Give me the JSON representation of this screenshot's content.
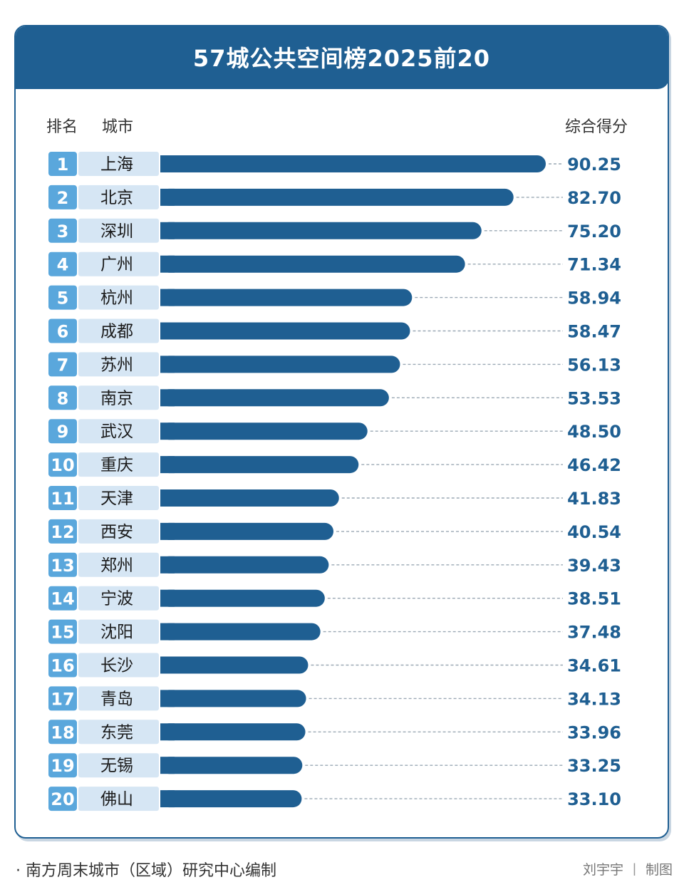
{
  "chart_data": {
    "type": "bar",
    "title": "57城公共空间榜2025前20",
    "headers": {
      "rank": "排名",
      "city": "城市",
      "score": "综合得分"
    },
    "ranks": [
      "1",
      "2",
      "3",
      "4",
      "5",
      "6",
      "7",
      "8",
      "9",
      "10",
      "11",
      "12",
      "13",
      "14",
      "15",
      "16",
      "17",
      "18",
      "19",
      "20"
    ],
    "categories": [
      "上海",
      "北京",
      "深圳",
      "广州",
      "杭州",
      "成都",
      "苏州",
      "南京",
      "武汉",
      "重庆",
      "天津",
      "西安",
      "郑州",
      "宁波",
      "沈阳",
      "长沙",
      "青岛",
      "东莞",
      "无锡",
      "佛山"
    ],
    "values": [
      90.25,
      82.7,
      75.2,
      71.34,
      58.94,
      58.47,
      56.13,
      53.53,
      48.5,
      46.42,
      41.83,
      40.54,
      39.43,
      38.51,
      37.48,
      34.61,
      34.13,
      33.96,
      33.25,
      33.1
    ],
    "value_labels": [
      "90.25",
      "82.70",
      "75.20",
      "71.34",
      "58.94",
      "58.47",
      "56.13",
      "53.53",
      "48.50",
      "46.42",
      "41.83",
      "40.54",
      "39.43",
      "38.51",
      "37.48",
      "34.61",
      "34.13",
      "33.96",
      "33.25",
      "33.10"
    ],
    "orientation": "horizontal"
  },
  "colors": {
    "bar": "#1f5f92",
    "rank_badge": "#5aa7dc",
    "city_cell": "#d6e6f4",
    "value_text": "#1f5f92",
    "leader_line": "#9aa8b4"
  },
  "footer": {
    "source": "· 南方周末城市（区域）研究中心编制",
    "author": "刘宇宇",
    "separator": "丨",
    "credit": "制图"
  }
}
